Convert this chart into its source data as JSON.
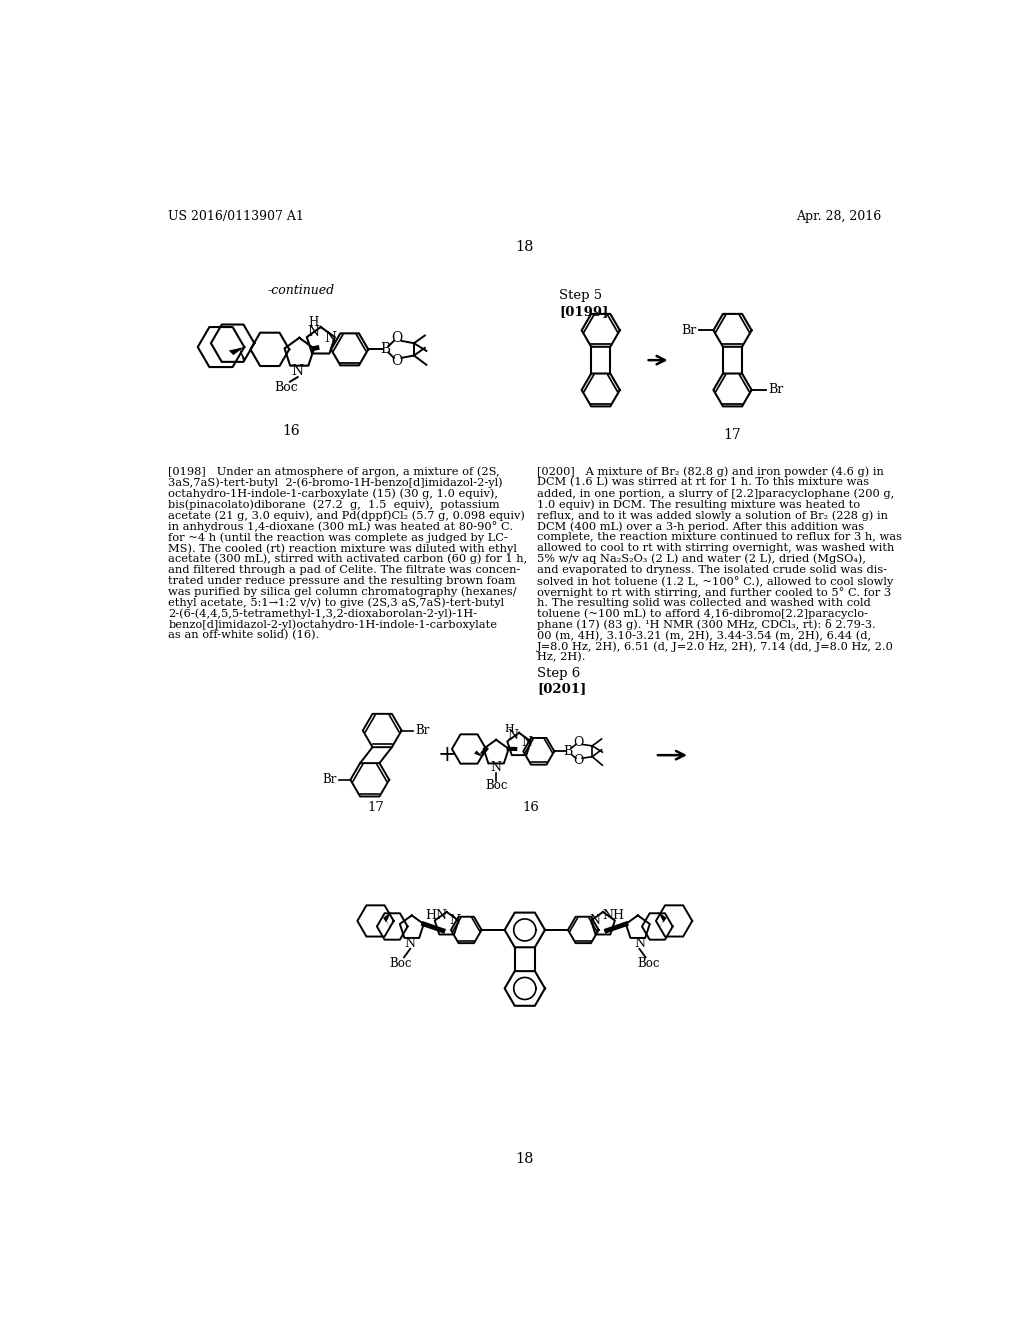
{
  "header_left": "US 2016/0113907 A1",
  "header_right": "Apr. 28, 2016",
  "page_number": "18",
  "page_number_bottom": "18",
  "background_color": "#ffffff",
  "text_color": "#000000",
  "font_size_body": 8.2,
  "font_size_header": 9.0,
  "font_size_page": 10.5,
  "para_lines_198": [
    "[0198]   Under an atmosphere of argon, a mixture of (2S,",
    "3aS,7aS)-tert-butyl  2-(6-bromo-1H-benzo[d]imidazol-2-yl)",
    "octahydro-1H-indole-1-carboxylate (15) (30 g, 1.0 equiv),",
    "bis(pinacolato)diborane  (27.2  g,  1.5  equiv),  potassium",
    "acetate (21 g, 3.0 equiv), and Pd(dppf)Cl₂ (5.7 g, 0.098 equiv)",
    "in anhydrous 1,4-dioxane (300 mL) was heated at 80-90° C.",
    "for ~4 h (until the reaction was complete as judged by LC-",
    "MS). The cooled (rt) reaction mixture was diluted with ethyl",
    "acetate (300 mL), stirred with activated carbon (60 g) for 1 h,",
    "and filtered through a pad of Celite. The filtrate was concen-",
    "trated under reduce pressure and the resulting brown foam",
    "was purified by silica gel column chromatography (hexanes/",
    "ethyl acetate, 5:1→1:2 v/v) to give (2S,3 aS,7aS)-tert-butyl",
    "2-(6-(4,4,5,5-tetramethyl-1,3,2-dioxaborolan-2-yl)-1H-",
    "benzo[d]imidazol-2-yl)octahydro-1H-indole-1-carboxylate",
    "as an off-white solid) (16)."
  ],
  "para_lines_200": [
    "[0200]   A mixture of Br₂ (82.8 g) and iron powder (4.6 g) in",
    "DCM (1.6 L) was stirred at rt for 1 h. To this mixture was",
    "added, in one portion, a slurry of [2.2]paracyclophane (200 g,",
    "1.0 equiv) in DCM. The resulting mixture was heated to",
    "reflux, and to it was added slowly a solution of Br₂ (228 g) in",
    "DCM (400 mL) over a 3-h period. After this addition was",
    "complete, the reaction mixture continued to reflux for 3 h, was",
    "allowed to cool to rt with stirring overnight, was washed with",
    "5% w/v aq Na₂S₂O₃ (2 L) and water (2 L), dried (MgSO₄),",
    "and evaporated to dryness. The isolated crude solid was dis-",
    "solved in hot toluene (1.2 L, ~100° C.), allowed to cool slowly",
    "overnight to rt with stirring, and further cooled to 5° C. for 3",
    "h. The resulting solid was collected and washed with cold",
    "toluene (~100 mL) to afford 4,16-dibromo[2.2]paracyclo-",
    "phane (17) (83 g). ¹H NMR (300 MHz, CDCl₃, rt): δ 2.79-3.",
    "00 (m, 4H), 3.10-3.21 (m, 2H), 3.44-3.54 (m, 2H), 6.44 (d,",
    "J=8.0 Hz, 2H), 6.51 (d, J=2.0 Hz, 2H), 7.14 (dd, J=8.0 Hz, 2.0",
    "Hz, 2H)."
  ]
}
